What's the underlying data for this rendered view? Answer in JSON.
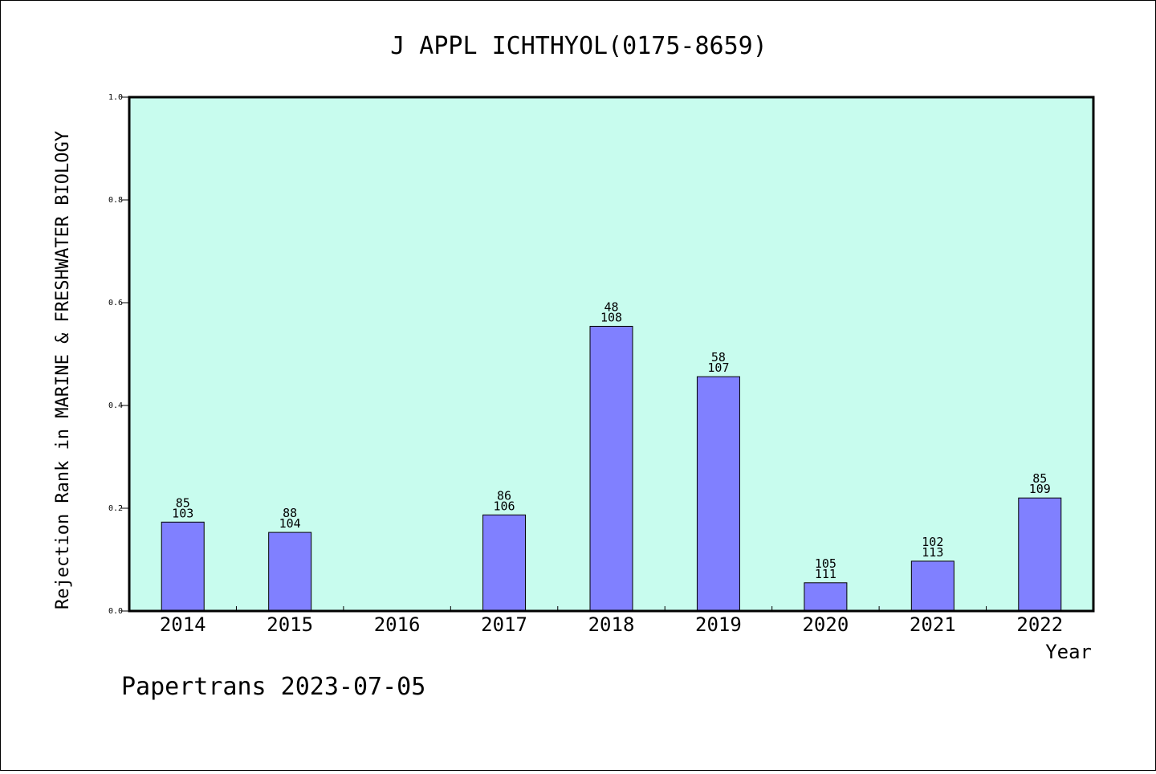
{
  "chart_data": {
    "type": "bar",
    "title": "J APPL ICHTHYOL(0175-8659)",
    "xlabel": "Year",
    "ylabel": "Rejection Rank in MARINE & FRESHWATER BIOLOGY",
    "ylim": [
      0,
      1.0
    ],
    "yticks": [
      "0.0",
      "0.2",
      "0.4",
      "0.6",
      "0.8",
      "1.0"
    ],
    "categories": [
      "2014",
      "2015",
      "2016",
      "2017",
      "2018",
      "2019",
      "2020",
      "2021",
      "2022"
    ],
    "values": [
      0.173,
      0.153,
      null,
      0.187,
      0.554,
      0.456,
      0.055,
      0.097,
      0.22
    ],
    "rank_labels": [
      "85",
      "88",
      "",
      "86",
      "48",
      "58",
      "105",
      "102",
      "85"
    ],
    "total_labels": [
      "103",
      "104",
      "",
      "106",
      "108",
      "107",
      "111",
      "113",
      "109"
    ],
    "grid": false,
    "colors": {
      "plot_background": "#c8fcee",
      "bar_fill": "#8080ff",
      "bar_stroke": "#000000"
    }
  },
  "footer": {
    "text": "Papertrans 2023-07-05"
  }
}
